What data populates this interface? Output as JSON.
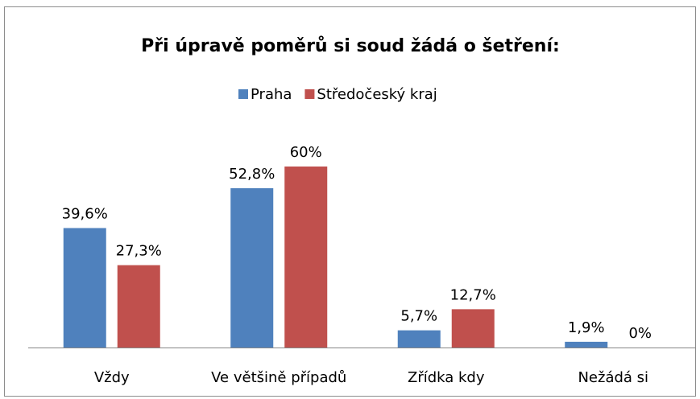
{
  "chart_data": {
    "type": "bar",
    "title": "Při úpravě poměrů si soud žádá o šetření:",
    "categories": [
      "Vždy",
      "Ve většině případů",
      "Zřídka kdy",
      "Nežádá si"
    ],
    "series": [
      {
        "name": "Praha",
        "color": "#4f81bd",
        "values": [
          39.6,
          52.8,
          5.7,
          1.9
        ],
        "value_labels": [
          "39,6%",
          "52,8%",
          "5,7%",
          "1,9%"
        ]
      },
      {
        "name": "Středočeský kraj",
        "color": "#c0504d",
        "values": [
          27.3,
          60,
          12.7,
          0
        ],
        "value_labels": [
          "27,3%",
          "60%",
          "12,7%",
          "0%"
        ]
      }
    ],
    "legend": "top"
  }
}
